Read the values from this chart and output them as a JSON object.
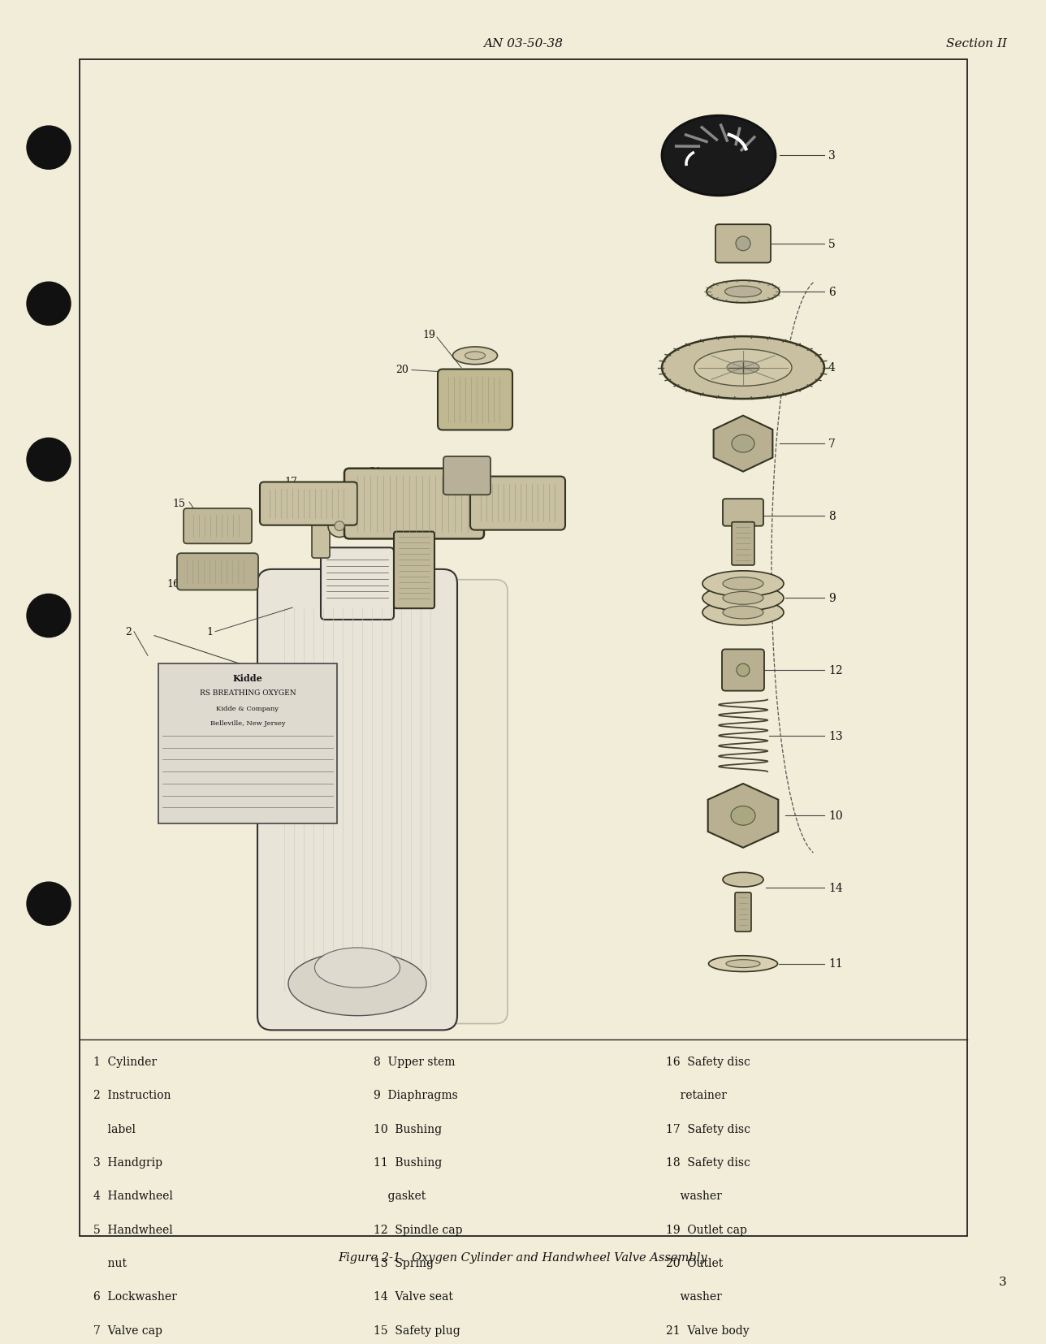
{
  "bg_color": "#f2edd8",
  "border_color": "#222222",
  "text_color": "#111111",
  "header_center": "AN 03-50-38",
  "header_right": "Section II",
  "page_number": "3",
  "figure_caption": "Figure 2-1.  Oxygen Cylinder and Handwheel Valve Assembly",
  "parts_col1": [
    "1  Cylinder",
    "2  Instruction",
    "    label",
    "3  Handgrip",
    "4  Handwheel",
    "5  Handwheel",
    "    nut",
    "6  Lockwasher",
    "7  Valve cap"
  ],
  "parts_col2": [
    "8  Upper stem",
    "9  Diaphragms",
    "10  Bushing",
    "11  Bushing",
    "    gasket",
    "12  Spindle cap",
    "13  Spring",
    "14  Valve seat",
    "15  Safety plug"
  ],
  "parts_col3": [
    "16  Safety disc",
    "    retainer",
    "17  Safety disc",
    "18  Safety disc",
    "    washer",
    "19  Outlet cap",
    "20  Outlet",
    "    washer",
    "21  Valve body"
  ]
}
